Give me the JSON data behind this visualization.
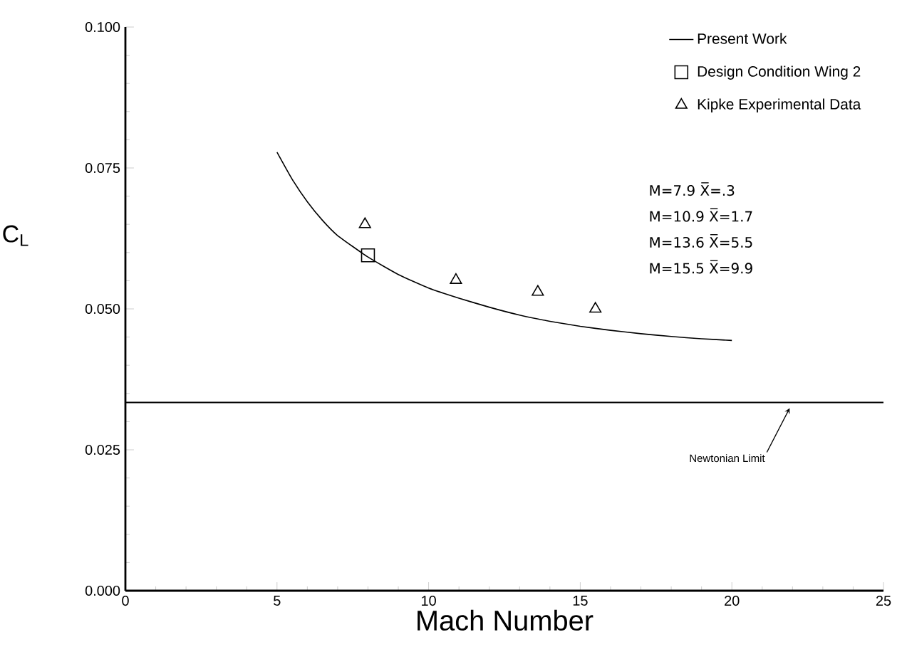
{
  "chart_data": {
    "type": "line",
    "xlabel": "Mach Number",
    "ylabel": "C$_{L}$",
    "xlim": [
      0,
      25
    ],
    "xticks": [
      0,
      5,
      10,
      15,
      20,
      25
    ],
    "ylim": [
      0,
      0.1
    ],
    "yticks": [
      {
        "value": 0,
        "label": "0.000"
      },
      {
        "value": 0.025,
        "label": "0.025"
      },
      {
        "value": 0.05,
        "label": "0.050"
      },
      {
        "value": 0.075,
        "label": "0.075"
      },
      {
        "value": 0.1,
        "label": "0.100"
      }
    ],
    "grid": false,
    "legend": "top right",
    "series": [
      {
        "name": "Present Work",
        "color": "#000000",
        "marker": "none",
        "x": [
          5,
          5.5,
          6,
          6.5,
          7,
          8,
          9,
          10,
          11,
          12,
          13,
          14,
          15,
          16,
          17,
          18,
          19,
          20
        ],
        "values": [
          0.0778,
          0.073,
          0.069,
          0.0657,
          0.063,
          0.0592,
          0.0561,
          0.0537,
          0.0519,
          0.0503,
          0.0489,
          0.0478,
          0.0469,
          0.0462,
          0.0456,
          0.0451,
          0.0447,
          0.0444
        ]
      },
      {
        "name": "Design Condition Wing 2",
        "type": "scatter",
        "color": "#000000",
        "marker": "square",
        "x": [
          8.0
        ],
        "values": [
          0.0595
        ]
      },
      {
        "name": "Kipke Experimental Data",
        "type": "scatter",
        "color": "#000000",
        "marker": "triangle",
        "x": [
          7.9,
          10.9,
          13.6,
          15.5
        ],
        "values": [
          0.065,
          0.0551,
          0.053,
          0.05
        ]
      }
    ],
    "ref_lines": [
      {
        "axis": "y",
        "value": 0.0334,
        "label": "Newtonian Limit",
        "color": "#000000"
      }
    ],
    "annotations": [
      "M=7.9 X̅=.3",
      "M=10.9 X̅=1.7",
      "M=13.6 X̅=5.5",
      "M=15.5 X̅=9.9"
    ]
  }
}
